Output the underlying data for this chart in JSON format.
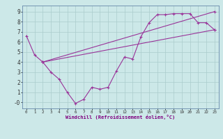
{
  "background_color": "#cce8e8",
  "grid_color": "#aacccc",
  "line_color": "#993399",
  "xlabel": "Windchill (Refroidissement éolien,°C)",
  "xlim": [
    -0.5,
    23.5
  ],
  "ylim": [
    -0.6,
    9.6
  ],
  "xticks": [
    0,
    1,
    2,
    3,
    4,
    5,
    6,
    7,
    8,
    9,
    10,
    11,
    12,
    13,
    14,
    15,
    16,
    17,
    18,
    19,
    20,
    21,
    22,
    23
  ],
  "yticks": [
    0,
    1,
    2,
    3,
    4,
    5,
    6,
    7,
    8,
    9
  ],
  "ytick_labels": [
    "-0",
    "1",
    "2",
    "3",
    "4",
    "5",
    "6",
    "7",
    "8",
    "9"
  ],
  "line1_x": [
    0,
    1,
    2,
    3,
    4,
    5,
    6,
    7,
    8,
    9,
    10,
    11,
    12,
    13,
    14,
    15,
    16,
    17,
    18,
    19,
    20,
    21,
    22,
    23
  ],
  "line1_y": [
    6.6,
    4.7,
    4.0,
    3.0,
    2.3,
    1.0,
    -0.1,
    0.3,
    1.5,
    1.3,
    1.5,
    3.1,
    4.5,
    4.3,
    6.5,
    7.9,
    8.7,
    8.7,
    8.8,
    8.8,
    8.8,
    7.9,
    7.9,
    7.2
  ],
  "line2_x": [
    2,
    23
  ],
  "line2_y": [
    4.0,
    7.2
  ],
  "line3_x": [
    2,
    23
  ],
  "line3_y": [
    4.0,
    9.0
  ]
}
